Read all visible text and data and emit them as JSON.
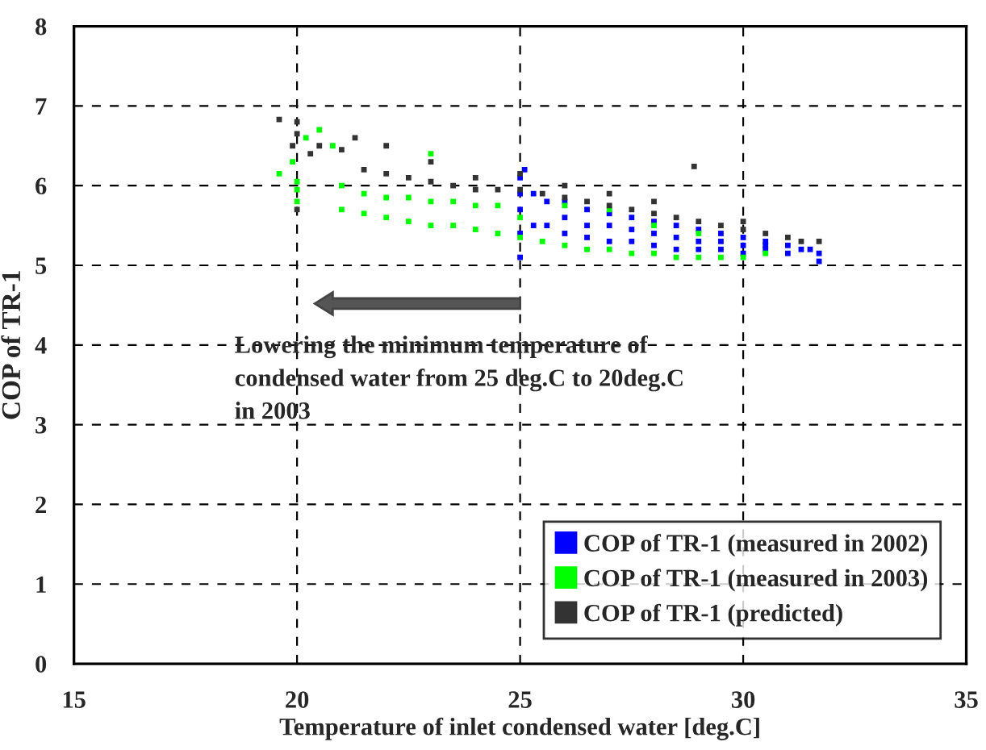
{
  "chart_data": {
    "type": "scatter",
    "xlabel": "Temperature of inlet condensed water [deg.C]",
    "ylabel": "COP of TR-1",
    "xlim": [
      15,
      35
    ],
    "xticks": [
      15,
      20,
      25,
      30,
      35
    ],
    "ylim": [
      0,
      8
    ],
    "yticks": [
      0,
      1,
      2,
      3,
      4,
      5,
      6,
      7,
      8
    ],
    "grid": true,
    "legend": "bottom right",
    "marker": "square",
    "annotations": [
      "Lowering the minimum temperature of condensed water from 25 deg.C to 20deg.C in 2003"
    ],
    "series": [
      {
        "name": "COP of TR-1 (measured in 2002)",
        "color": "#0000ff",
        "x": [
          25.0,
          25.0,
          25.0,
          25.0,
          25.0,
          25.1,
          25.3,
          25.3,
          25.6,
          25.6,
          26.0,
          26.0,
          26.0,
          26.5,
          26.5,
          26.5,
          27.0,
          27.0,
          27.0,
          27.5,
          27.5,
          27.5,
          28.0,
          28.0,
          28.0,
          28.5,
          28.5,
          28.5,
          29.0,
          29.0,
          29.0,
          29.5,
          29.5,
          29.5,
          30.0,
          30.0,
          30.0,
          30.5,
          30.5,
          30.5,
          31.0,
          31.0,
          31.3,
          31.5,
          31.7,
          31.7
        ],
        "values": [
          5.4,
          5.7,
          5.9,
          6.1,
          5.1,
          6.2,
          5.5,
          5.9,
          5.5,
          5.8,
          5.4,
          5.6,
          5.8,
          5.35,
          5.5,
          5.7,
          5.3,
          5.5,
          5.65,
          5.3,
          5.45,
          5.6,
          5.25,
          5.4,
          5.55,
          5.2,
          5.35,
          5.5,
          5.2,
          5.3,
          5.45,
          5.2,
          5.3,
          5.4,
          5.15,
          5.25,
          5.35,
          5.2,
          5.25,
          5.3,
          5.15,
          5.25,
          5.2,
          5.2,
          5.05,
          5.15
        ]
      },
      {
        "name": "COP of TR-1 (measured in 2003)",
        "color": "#00ff00",
        "x": [
          19.6,
          19.9,
          20.0,
          20.0,
          20.0,
          20.2,
          20.5,
          20.8,
          21.0,
          21.0,
          21.5,
          21.5,
          22.0,
          22.0,
          22.5,
          22.5,
          23.0,
          23.0,
          23.0,
          23.5,
          23.5,
          24.0,
          24.0,
          24.5,
          24.5,
          25.0,
          25.0,
          25.5,
          26.0,
          26.5,
          27.0,
          27.5,
          28.0,
          28.5,
          29.0,
          29.5,
          30.0,
          30.5,
          26.0,
          27.0,
          28.0,
          29.0
        ],
        "values": [
          6.15,
          6.3,
          5.8,
          5.95,
          6.05,
          6.6,
          6.7,
          6.5,
          5.7,
          6.0,
          5.65,
          5.9,
          5.6,
          5.85,
          5.55,
          5.85,
          5.5,
          5.8,
          6.4,
          5.5,
          5.8,
          5.45,
          5.75,
          5.4,
          5.75,
          5.35,
          5.6,
          5.3,
          5.25,
          5.2,
          5.2,
          5.15,
          5.15,
          5.1,
          5.1,
          5.1,
          5.1,
          5.15,
          5.75,
          5.7,
          5.5,
          5.4
        ]
      },
      {
        "name": "COP of TR-1 (predicted)",
        "color": "#333333",
        "x": [
          19.6,
          19.9,
          20.0,
          20.0,
          20.0,
          20.3,
          20.5,
          21.0,
          21.3,
          21.5,
          22.0,
          22.0,
          22.5,
          23.0,
          23.0,
          23.5,
          24.0,
          24.0,
          24.5,
          25.0,
          25.0,
          25.5,
          26.0,
          26.0,
          26.5,
          27.0,
          27.0,
          27.5,
          28.0,
          28.0,
          28.5,
          28.9,
          29.0,
          29.5,
          30.0,
          30.0,
          30.5,
          31.0,
          31.3,
          31.7
        ],
        "values": [
          6.83,
          6.5,
          6.65,
          6.8,
          5.7,
          6.4,
          6.5,
          6.45,
          6.6,
          6.2,
          6.15,
          6.5,
          6.1,
          6.05,
          6.3,
          6.0,
          5.95,
          6.1,
          5.95,
          5.95,
          6.15,
          5.9,
          5.85,
          6.0,
          5.8,
          5.75,
          5.9,
          5.7,
          5.65,
          5.8,
          5.6,
          6.24,
          5.55,
          5.5,
          5.45,
          5.55,
          5.4,
          5.35,
          5.3,
          5.3
        ]
      }
    ]
  }
}
